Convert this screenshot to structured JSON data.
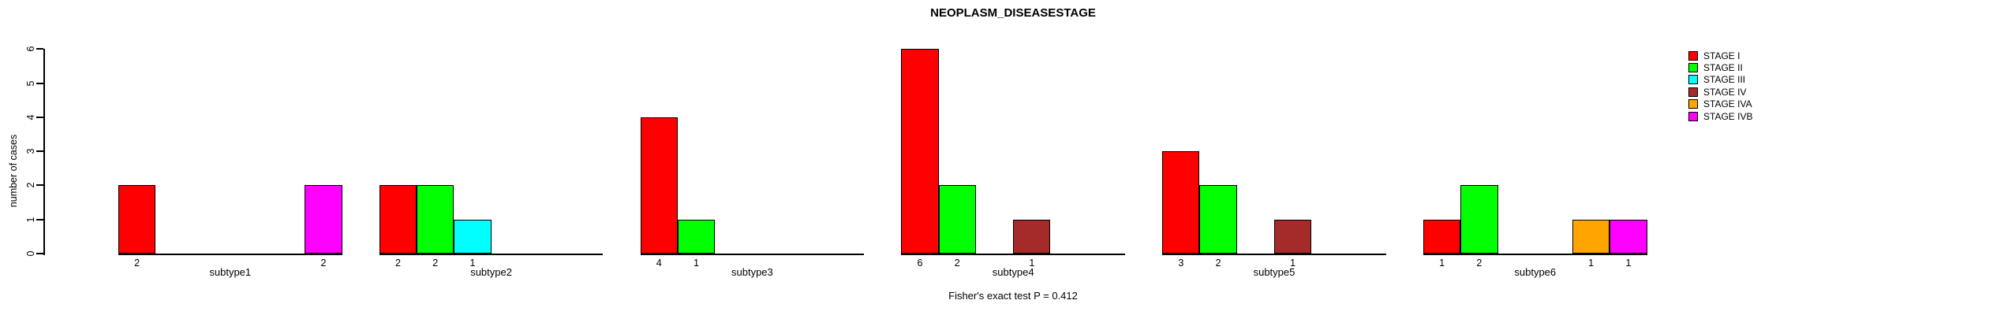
{
  "chart_data": {
    "type": "bar",
    "title": "NEOPLASM_DISEASESTAGE",
    "subtitle": "Fisher's exact test P = 0.412",
    "xlabel": "",
    "ylabel": "number of cases",
    "ylim": [
      0,
      6
    ],
    "yticks": [
      0,
      1,
      2,
      3,
      4,
      5,
      6
    ],
    "grid": false,
    "legend_position": "top-right",
    "bar_value_labels": "shown below each nonzero bar",
    "categories": [
      "subtype1",
      "subtype2",
      "subtype3",
      "subtype4",
      "subtype5",
      "subtype6"
    ],
    "series": [
      {
        "name": "STAGE I",
        "color": "#FF0000",
        "values": [
          2,
          2,
          4,
          6,
          3,
          1
        ]
      },
      {
        "name": "STAGE II",
        "color": "#00FF00",
        "values": [
          0,
          2,
          1,
          2,
          2,
          2
        ]
      },
      {
        "name": "STAGE III",
        "color": "#00FFFF",
        "values": [
          0,
          1,
          0,
          0,
          0,
          0
        ]
      },
      {
        "name": "STAGE IV",
        "color": "#A52A2A",
        "values": [
          0,
          0,
          0,
          1,
          1,
          0
        ]
      },
      {
        "name": "STAGE IVA",
        "color": "#FFA500",
        "values": [
          0,
          0,
          0,
          0,
          0,
          1
        ]
      },
      {
        "name": "STAGE IVB",
        "color": "#FF00FF",
        "values": [
          2,
          0,
          0,
          0,
          0,
          1
        ]
      }
    ]
  }
}
